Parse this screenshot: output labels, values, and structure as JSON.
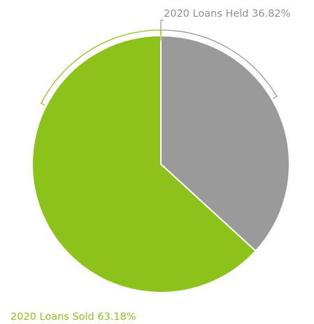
{
  "chart_data": {
    "type": "pie",
    "title": "",
    "slices": [
      {
        "label": "2020 Loans Held",
        "value": 36.82,
        "display": "2020 Loans Held 36.82%",
        "color": "#9a9a9a"
      },
      {
        "label": "2020 Loans Sold",
        "value": 63.18,
        "display": "2020 Loans Sold 63.18%",
        "color": "#8cc31a"
      }
    ],
    "start_angle_deg": 0,
    "direction": "clockwise",
    "label_style": "outside-with-bracket-leaders"
  }
}
